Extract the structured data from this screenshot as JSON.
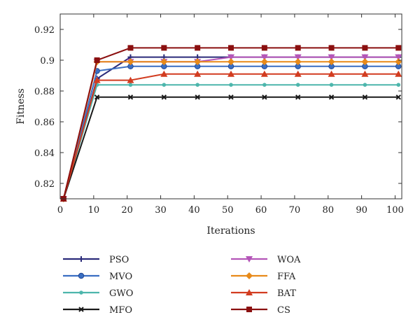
{
  "chart_data": {
    "type": "line",
    "title": "",
    "xlabel": "Iterations",
    "ylabel": "Fitness",
    "xlim": [
      0,
      102
    ],
    "ylim": [
      0.81,
      0.93
    ],
    "xticks": [
      0,
      10,
      20,
      30,
      40,
      50,
      60,
      70,
      80,
      90,
      100
    ],
    "yticks": [
      0.82,
      0.84,
      0.86,
      0.88,
      0.9,
      0.92
    ],
    "ytick_labels": [
      "0.82",
      "0.84",
      "0.86",
      "0.88",
      "0.9",
      "0.92"
    ],
    "grid": false,
    "legend_position": "bottom",
    "x": [
      1,
      11,
      21,
      31,
      41,
      51,
      61,
      71,
      81,
      91,
      101
    ],
    "series": [
      {
        "name": "PSO",
        "color": "#2b2b7a",
        "marker": "plus",
        "values": [
          0.81,
          0.888,
          0.902,
          0.902,
          0.902,
          0.902,
          0.902,
          0.902,
          0.902,
          0.902,
          0.902
        ]
      },
      {
        "name": "MVO",
        "color": "#3a6ec2",
        "marker": "circle",
        "values": [
          0.81,
          0.893,
          0.896,
          0.896,
          0.896,
          0.896,
          0.896,
          0.896,
          0.896,
          0.896,
          0.896
        ]
      },
      {
        "name": "GWO",
        "color": "#4db6ac",
        "marker": "circle-small",
        "values": [
          0.81,
          0.884,
          0.884,
          0.884,
          0.884,
          0.884,
          0.884,
          0.884,
          0.884,
          0.884,
          0.884
        ]
      },
      {
        "name": "MFO",
        "color": "#1a1a1a",
        "marker": "x",
        "values": [
          0.81,
          0.876,
          0.876,
          0.876,
          0.876,
          0.876,
          0.876,
          0.876,
          0.876,
          0.876,
          0.876
        ]
      },
      {
        "name": "WOA",
        "color": "#b455b8",
        "marker": "triangle-down",
        "values": [
          0.81,
          0.899,
          0.899,
          0.899,
          0.899,
          0.902,
          0.902,
          0.902,
          0.902,
          0.902,
          0.902
        ]
      },
      {
        "name": "FFA",
        "color": "#e88a1a",
        "marker": "diamond",
        "values": [
          0.81,
          0.899,
          0.899,
          0.899,
          0.899,
          0.899,
          0.899,
          0.899,
          0.899,
          0.899,
          0.899
        ]
      },
      {
        "name": "BAT",
        "color": "#d23c20",
        "marker": "triangle-up",
        "values": [
          0.81,
          0.887,
          0.887,
          0.891,
          0.891,
          0.891,
          0.891,
          0.891,
          0.891,
          0.891,
          0.891
        ]
      },
      {
        "name": "CS",
        "color": "#8b1010",
        "marker": "square",
        "values": [
          0.81,
          0.9,
          0.908,
          0.908,
          0.908,
          0.908,
          0.908,
          0.908,
          0.908,
          0.908,
          0.908
        ]
      }
    ]
  }
}
